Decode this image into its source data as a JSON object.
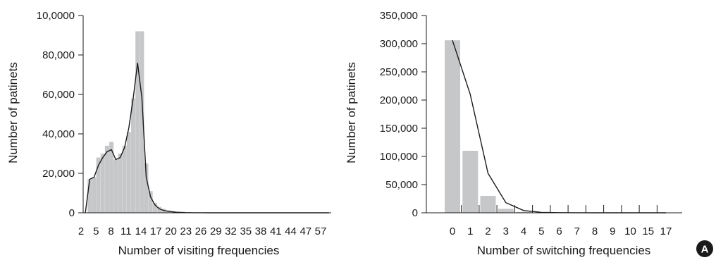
{
  "panel_label": "A",
  "chart_data": [
    {
      "type": "bar",
      "overlay": "line",
      "title": "",
      "xlabel": "Number of visiting frequencies",
      "ylabel": "Number of patinets",
      "ylim": [
        0,
        100000
      ],
      "y_tick_labels": [
        "0",
        "20,000",
        "40,000",
        "60,000",
        "80,000",
        "10,0000"
      ],
      "x_tick_labels": [
        "2",
        "5",
        "8",
        "11",
        "14",
        "17",
        "20",
        "23",
        "26",
        "29",
        "32",
        "35",
        "38",
        "41",
        "44",
        "47",
        "57"
      ],
      "x": [
        1,
        2,
        3,
        4,
        5,
        6,
        7,
        8,
        9,
        10,
        11,
        12,
        13,
        14,
        15,
        16,
        17,
        18,
        19,
        20,
        21,
        22,
        23,
        24,
        25,
        26,
        27,
        28,
        29,
        30,
        31,
        32,
        33,
        34,
        35,
        36,
        37,
        38,
        39,
        40,
        41,
        42,
        43,
        44,
        45,
        46,
        47,
        48,
        49,
        50,
        51,
        52,
        53,
        54,
        55,
        56,
        57
      ],
      "series": [
        {
          "kind": "bar",
          "values": [
            0,
            17000,
            18000,
            28000,
            30000,
            34000,
            36000,
            27000,
            30000,
            34000,
            41000,
            58000,
            92000,
            92000,
            25000,
            11000,
            5000,
            3000,
            2000,
            1200,
            800,
            500,
            300,
            200,
            100,
            80,
            50,
            30,
            20,
            10,
            0,
            0,
            0,
            0,
            0,
            0,
            0,
            0,
            0,
            0,
            0,
            0,
            0,
            0,
            0,
            0,
            0,
            0,
            0,
            0,
            0,
            0,
            0,
            0,
            0,
            0,
            0
          ]
        },
        {
          "kind": "line",
          "values": [
            0,
            17000,
            18000,
            24000,
            28000,
            31000,
            32000,
            27000,
            28000,
            33000,
            43000,
            58000,
            76000,
            58000,
            18000,
            8000,
            4000,
            2000,
            1200,
            800,
            500,
            300,
            200,
            100,
            80,
            50,
            30,
            20,
            10,
            0,
            0,
            0,
            0,
            0,
            0,
            0,
            0,
            0,
            0,
            0,
            0,
            0,
            0,
            0,
            0,
            0,
            0,
            0,
            0,
            0,
            0,
            0,
            0,
            0,
            0,
            0,
            0
          ]
        }
      ],
      "colors": {
        "bar": "#c6c7c9",
        "line": "#1a1a1a",
        "axis": "#1a1a1a"
      }
    },
    {
      "type": "bar",
      "overlay": "line",
      "title": "",
      "xlabel": "Number of switching frequencies",
      "ylabel": "Number of patinets",
      "ylim": [
        0,
        350000
      ],
      "y_tick_labels": [
        "0",
        "50,000",
        "100,000",
        "150,000",
        "200,000",
        "250,000",
        "300,000",
        "350,000"
      ],
      "categories": [
        "0",
        "1",
        "2",
        "3",
        "4",
        "5",
        "6",
        "7",
        "8",
        "9",
        "10",
        "15",
        "17"
      ],
      "series": [
        {
          "kind": "bar",
          "values": [
            306000,
            110000,
            30000,
            7000,
            1500,
            300,
            100,
            50,
            20,
            10,
            5,
            0,
            0
          ]
        },
        {
          "kind": "line",
          "values": [
            306000,
            210000,
            70000,
            18000,
            4000,
            800,
            200,
            100,
            50,
            20,
            10,
            0,
            0
          ]
        }
      ],
      "colors": {
        "bar": "#c6c7c9",
        "line": "#1a1a1a",
        "axis": "#1a1a1a"
      }
    }
  ]
}
